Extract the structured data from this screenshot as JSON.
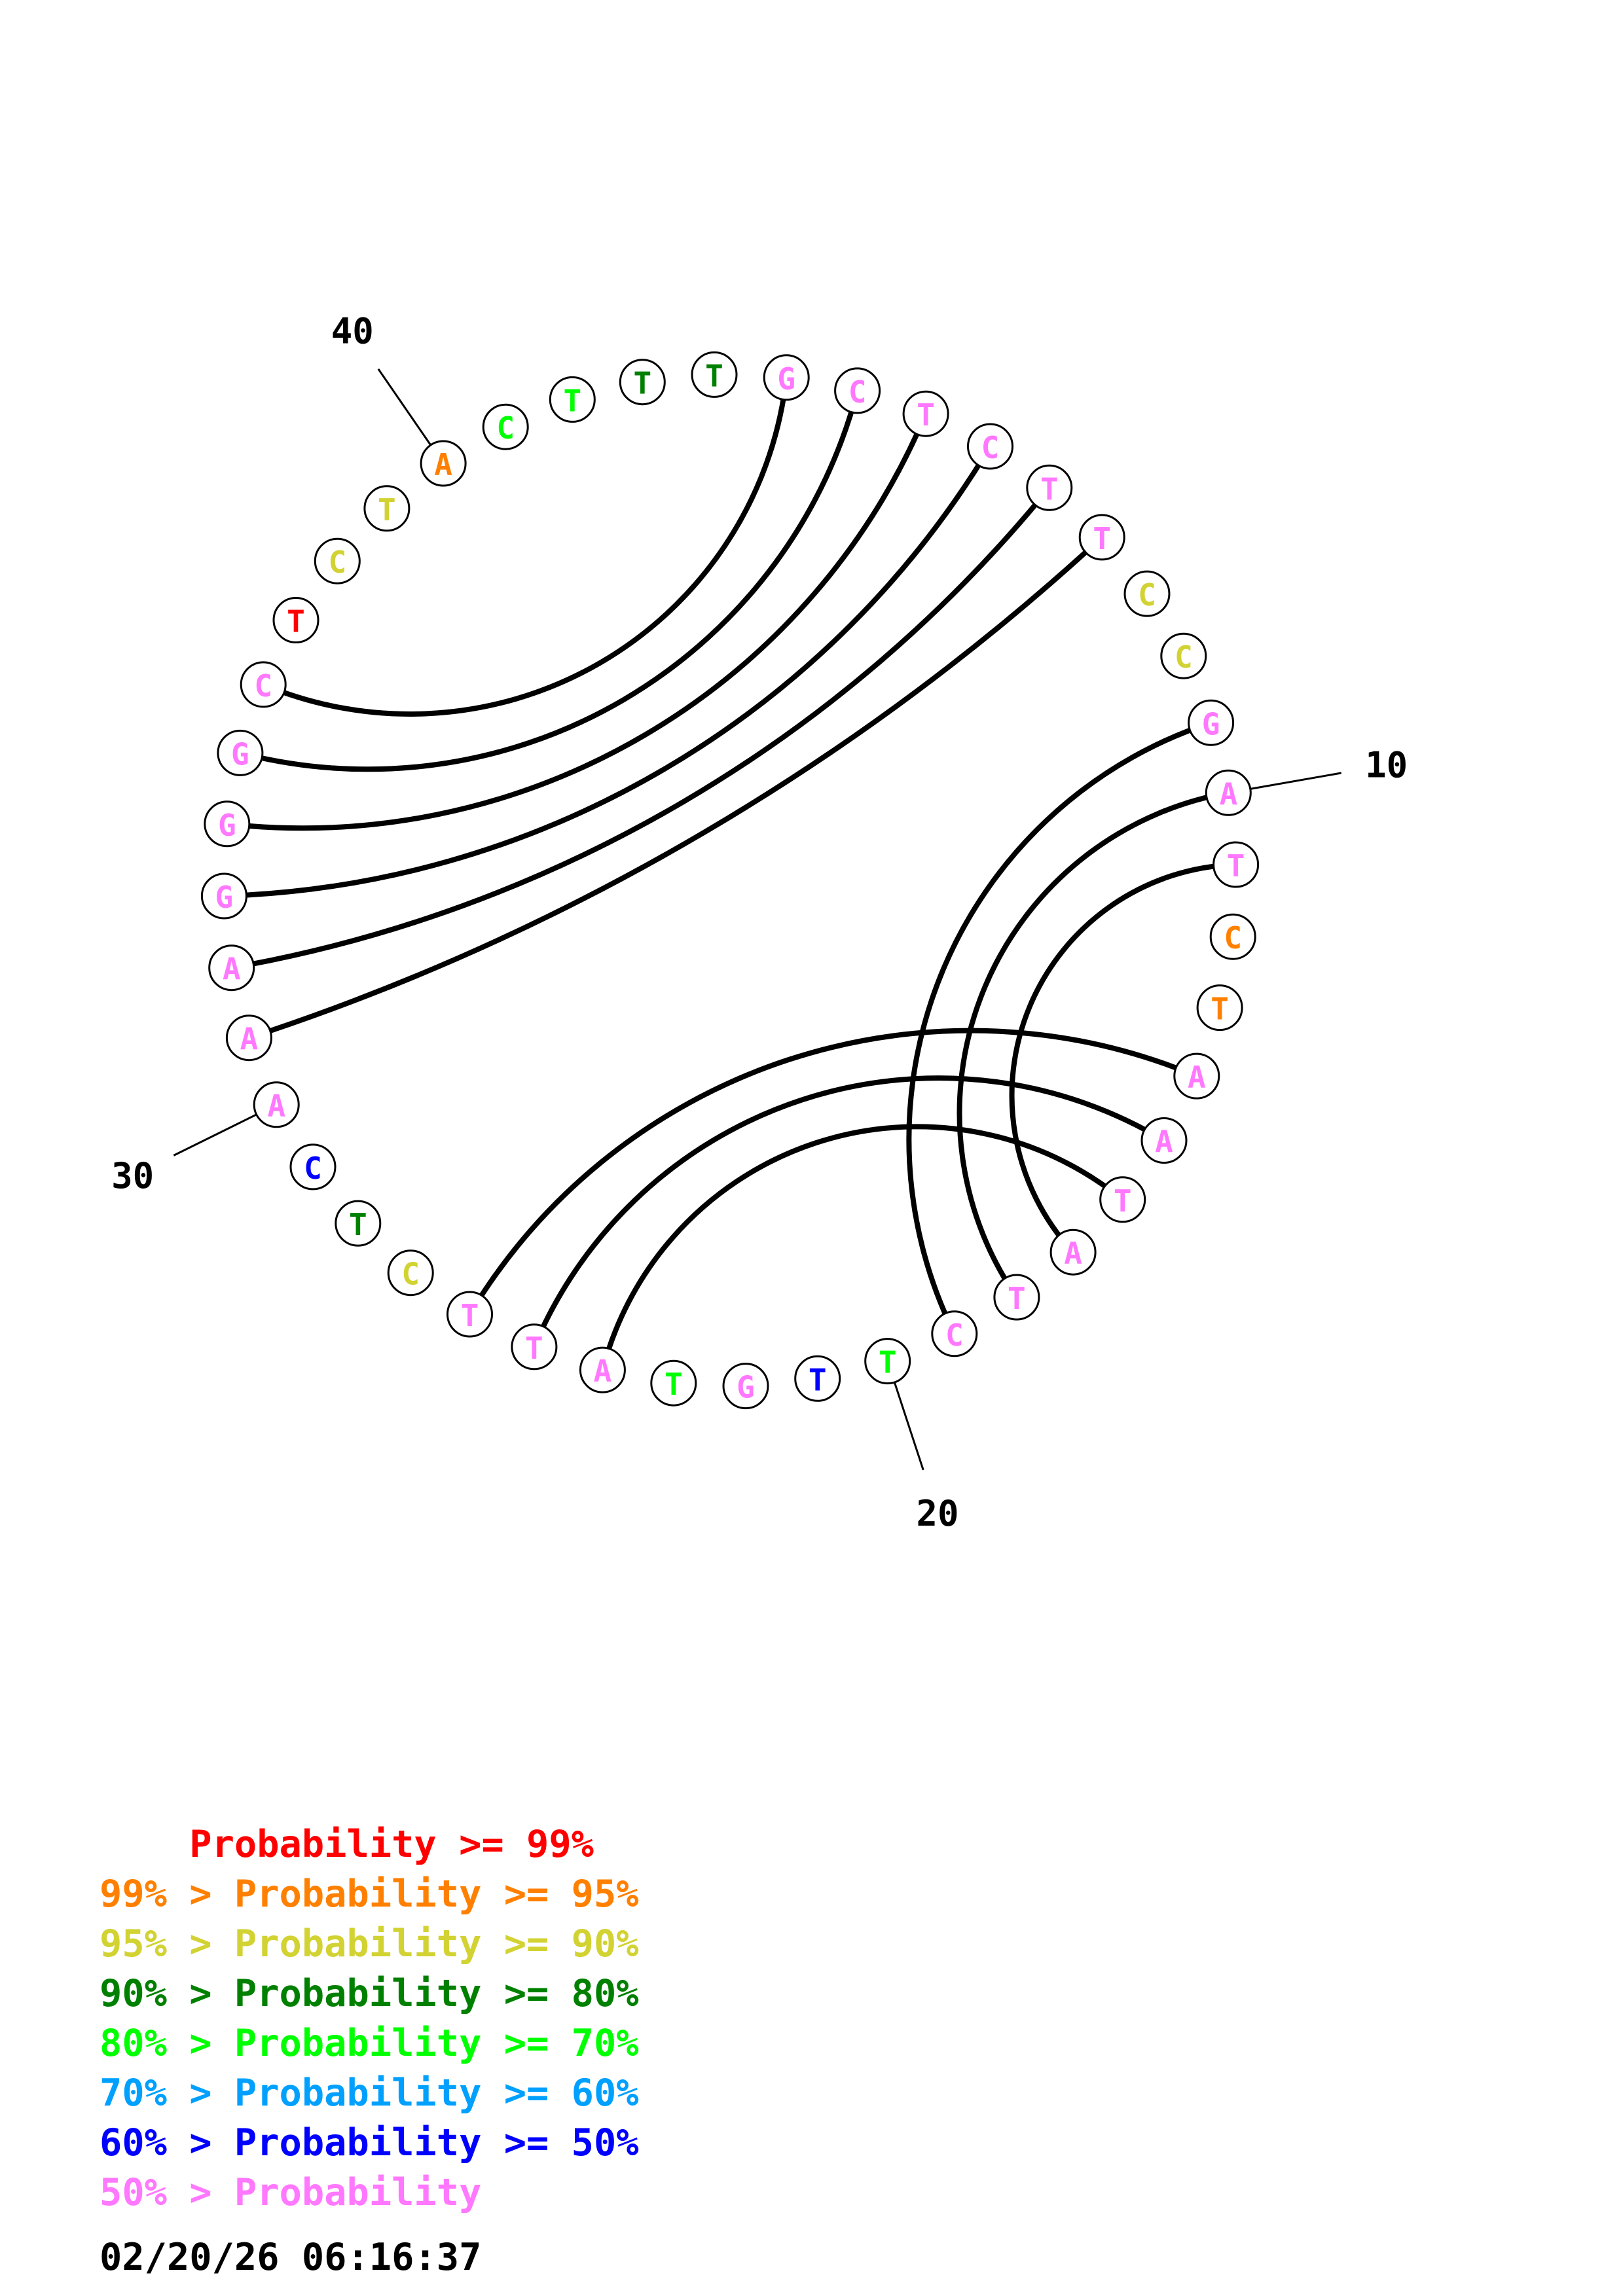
{
  "colors": {
    "p99": "#ff0000",
    "p95": "#ff8000",
    "p90": "#d2d232",
    "p80": "#008000",
    "p70": "#00ff00",
    "p60": "#00a0ff",
    "p50": "#0000ff",
    "p_low": "#ff78ff"
  },
  "sequence": [
    {
      "base": "G",
      "level": "p_low"
    },
    {
      "base": "C",
      "level": "p_low"
    },
    {
      "base": "T",
      "level": "p_low"
    },
    {
      "base": "C",
      "level": "p_low"
    },
    {
      "base": "T",
      "level": "p_low"
    },
    {
      "base": "T",
      "level": "p_low"
    },
    {
      "base": "C",
      "level": "p90"
    },
    {
      "base": "C",
      "level": "p90"
    },
    {
      "base": "G",
      "level": "p_low"
    },
    {
      "base": "A",
      "level": "p_low"
    },
    {
      "base": "T",
      "level": "p_low"
    },
    {
      "base": "C",
      "level": "p95"
    },
    {
      "base": "T",
      "level": "p95"
    },
    {
      "base": "A",
      "level": "p_low"
    },
    {
      "base": "A",
      "level": "p_low"
    },
    {
      "base": "T",
      "level": "p_low"
    },
    {
      "base": "A",
      "level": "p_low"
    },
    {
      "base": "T",
      "level": "p_low"
    },
    {
      "base": "C",
      "level": "p_low"
    },
    {
      "base": "T",
      "level": "p70"
    },
    {
      "base": "T",
      "level": "p50"
    },
    {
      "base": "G",
      "level": "p_low"
    },
    {
      "base": "T",
      "level": "p70"
    },
    {
      "base": "A",
      "level": "p_low"
    },
    {
      "base": "T",
      "level": "p_low"
    },
    {
      "base": "T",
      "level": "p_low"
    },
    {
      "base": "C",
      "level": "p90"
    },
    {
      "base": "T",
      "level": "p80"
    },
    {
      "base": "C",
      "level": "p50"
    },
    {
      "base": "A",
      "level": "p_low"
    },
    {
      "base": "A",
      "level": "p_low"
    },
    {
      "base": "A",
      "level": "p_low"
    },
    {
      "base": "G",
      "level": "p_low"
    },
    {
      "base": "G",
      "level": "p_low"
    },
    {
      "base": "G",
      "level": "p_low"
    },
    {
      "base": "C",
      "level": "p_low"
    },
    {
      "base": "T",
      "level": "p99"
    },
    {
      "base": "C",
      "level": "p90"
    },
    {
      "base": "T",
      "level": "p90"
    },
    {
      "base": "A",
      "level": "p95"
    },
    {
      "base": "C",
      "level": "p70"
    },
    {
      "base": "T",
      "level": "p70"
    },
    {
      "base": "T",
      "level": "p80"
    },
    {
      "base": "T",
      "level": "p80"
    }
  ],
  "pairs": [
    [
      1,
      36
    ],
    [
      2,
      35
    ],
    [
      3,
      34
    ],
    [
      4,
      33
    ],
    [
      5,
      32
    ],
    [
      6,
      31
    ],
    [
      9,
      19
    ],
    [
      10,
      18
    ],
    [
      11,
      17
    ],
    [
      14,
      26
    ],
    [
      15,
      25
    ],
    [
      16,
      24
    ]
  ],
  "position_labels": [
    {
      "position": 10,
      "text": "10"
    },
    {
      "position": 20,
      "text": "20"
    },
    {
      "position": 30,
      "text": "30"
    },
    {
      "position": 40,
      "text": "40"
    }
  ],
  "legend": [
    {
      "prefix": "    ",
      "range": "Probability >= 99%",
      "level": "p99"
    },
    {
      "prefix": "99% > ",
      "range": "Probability >= 95%",
      "level": "p95"
    },
    {
      "prefix": "95% > ",
      "range": "Probability >= 90%",
      "level": "p90"
    },
    {
      "prefix": "90% > ",
      "range": "Probability >= 80%",
      "level": "p80"
    },
    {
      "prefix": "80% > ",
      "range": "Probability >= 70%",
      "level": "p70"
    },
    {
      "prefix": "70% > ",
      "range": "Probability >= 60%",
      "level": "p60"
    },
    {
      "prefix": "60% > ",
      "range": "Probability >= 50%",
      "level": "p50"
    },
    {
      "prefix": "50% > ",
      "range": "Probability",
      "level": "p_low"
    }
  ],
  "timestamp": "02/20/26 06:16:37"
}
